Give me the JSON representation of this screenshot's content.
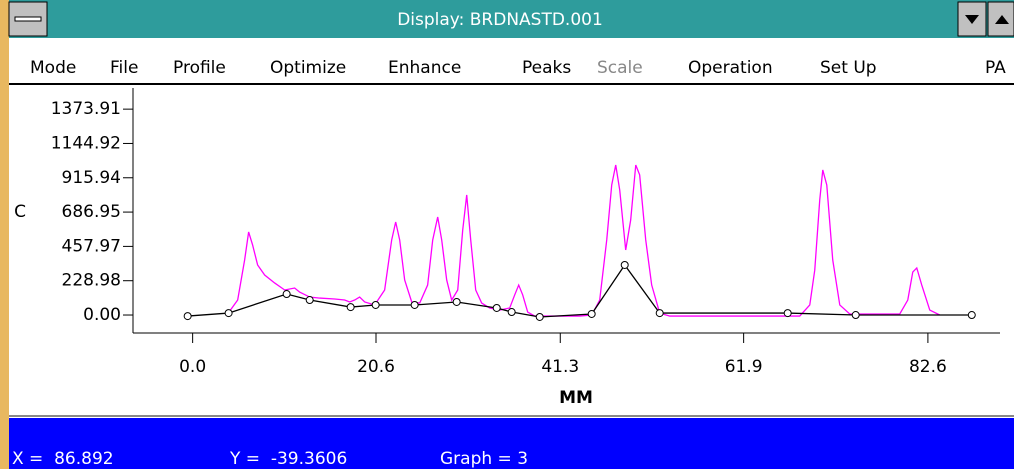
{
  "window": {
    "title": "Display: BRDNASTD.001",
    "menu": [
      {
        "label": "Mode"
      },
      {
        "label": "File"
      },
      {
        "label": "Profile"
      },
      {
        "label": "Optimize"
      },
      {
        "label": "Enhance"
      },
      {
        "label": "Peaks"
      },
      {
        "label": "Scale",
        "disabled": true
      },
      {
        "label": "Operation"
      },
      {
        "label": "Set Up"
      },
      {
        "label": "PA"
      }
    ]
  },
  "chart_data": {
    "type": "line",
    "ylabel": "C",
    "xlabel": "MM",
    "xlim": [
      -6.7,
      90.7
    ],
    "ylim": [
      -120,
      1515
    ],
    "xticks": [
      {
        "value": 0,
        "label": "0.0"
      },
      20.6,
      41.3,
      61.9,
      82.6
    ],
    "yticks": [
      {
        "value": 0,
        "label": "0.00"
      },
      228.98,
      457.97,
      686.95,
      915.94,
      1144.92,
      1373.91
    ],
    "series": [
      {
        "color": "#ff00ff",
        "marker": false,
        "x": [
          3.93,
          5.06,
          5.84,
          6.29,
          6.74,
          7.3,
          8.09,
          9.21,
          10.34,
          11.46,
          12.02,
          13.15,
          14.27,
          15.96,
          17.08,
          17.64,
          18.2,
          18.76,
          19.33,
          20.45,
          21.57,
          22.36,
          22.81,
          23.26,
          23.82,
          24.61,
          25.51,
          26.4,
          26.97,
          27.53,
          27.98,
          28.54,
          29.1,
          29.78,
          30.34,
          30.79,
          31.24,
          31.8,
          32.47,
          33.37,
          34.49,
          35.62,
          36.18,
          36.63,
          37.08,
          37.64,
          38.43,
          40.11,
          43.48,
          44.83,
          45.73,
          46.52,
          47.08,
          47.53,
          47.98,
          48.65,
          49.21,
          49.78,
          50.22,
          50.9,
          51.57,
          52.47,
          53.6,
          68.2,
          69.33,
          69.89,
          70.45,
          70.79,
          71.24,
          71.91,
          72.7,
          73.82,
          79.44,
          80.34,
          80.9,
          81.35,
          81.91,
          82.81,
          83.93
        ],
        "values": [
          7,
          100,
          367,
          554,
          467,
          334,
          267,
          214,
          167,
          180,
          153,
          120,
          113,
          107,
          100,
          87,
          100,
          120,
          87,
          67,
          167,
          501,
          621,
          501,
          234,
          87,
          80,
          200,
          501,
          654,
          501,
          234,
          100,
          167,
          567,
          801,
          501,
          167,
          80,
          47,
          33,
          47,
          134,
          200,
          134,
          20,
          -7,
          -7,
          -7,
          0,
          100,
          501,
          868,
          1001,
          834,
          434,
          634,
          1001,
          935,
          501,
          200,
          13,
          -7,
          -7,
          67,
          300,
          768,
          968,
          868,
          367,
          67,
          7,
          7,
          100,
          287,
          314,
          200,
          33,
          0
        ]
      },
      {
        "color": "#000000",
        "marker": true,
        "x": [
          -0.56,
          4.04,
          10.56,
          13.15,
          17.75,
          20.56,
          24.94,
          29.66,
          34.16,
          35.84,
          38.99,
          44.83,
          48.54,
          52.47,
          66.85,
          74.49,
          87.53
        ],
        "values": [
          -7,
          13,
          140,
          100,
          53,
          67,
          67,
          87,
          47,
          20,
          -13,
          7,
          334,
          13,
          13,
          0,
          0
        ]
      }
    ]
  },
  "status": [
    "X =  86.892",
    "Y =  -39.3606",
    "Graph = 3"
  ]
}
